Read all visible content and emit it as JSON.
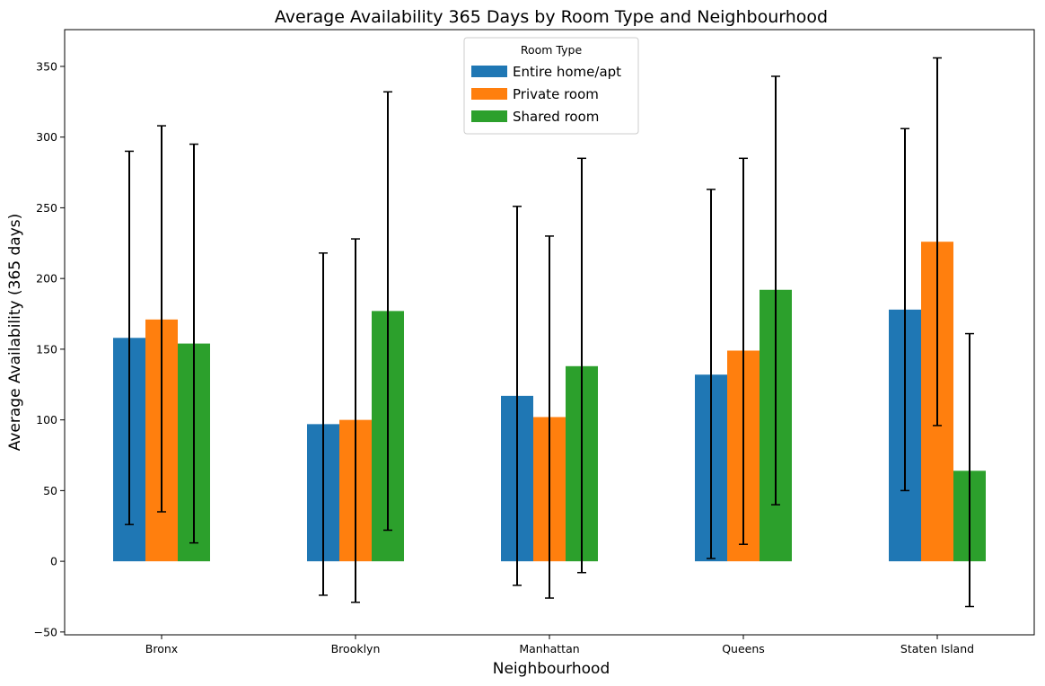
{
  "chart_data": {
    "type": "bar",
    "title": "Average Availability 365 Days by Room Type and Neighbourhood",
    "xlabel": "Neighbourhood",
    "ylabel": "Average Availability (365 days)",
    "categories": [
      "Bronx",
      "Brooklyn",
      "Manhattan",
      "Queens",
      "Staten Island"
    ],
    "ylim": [
      -52,
      376
    ],
    "yticks": [
      -50,
      0,
      50,
      100,
      150,
      200,
      250,
      300,
      350
    ],
    "ytick_labels": [
      "−50",
      "0",
      "50",
      "100",
      "150",
      "200",
      "250",
      "300",
      "350"
    ],
    "grid": false,
    "legend": {
      "title": "Room Type",
      "placement": "top-center"
    },
    "series": [
      {
        "name": "Entire home/apt",
        "color": "#1f77b4",
        "values": [
          158,
          97,
          117,
          132,
          178
        ],
        "err_low": [
          26,
          -24,
          -17,
          2,
          50
        ],
        "err_high": [
          290,
          218,
          251,
          263,
          306
        ]
      },
      {
        "name": "Private room",
        "color": "#ff7f0e",
        "values": [
          171,
          100,
          102,
          149,
          226
        ],
        "err_low": [
          35,
          -29,
          -26,
          12,
          96
        ],
        "err_high": [
          308,
          228,
          230,
          285,
          356
        ]
      },
      {
        "name": "Shared room",
        "color": "#2ca02c",
        "values": [
          154,
          177,
          138,
          192,
          64
        ],
        "err_low": [
          13,
          22,
          -8,
          40,
          -32
        ],
        "err_high": [
          295,
          332,
          285,
          343,
          161
        ]
      }
    ]
  }
}
